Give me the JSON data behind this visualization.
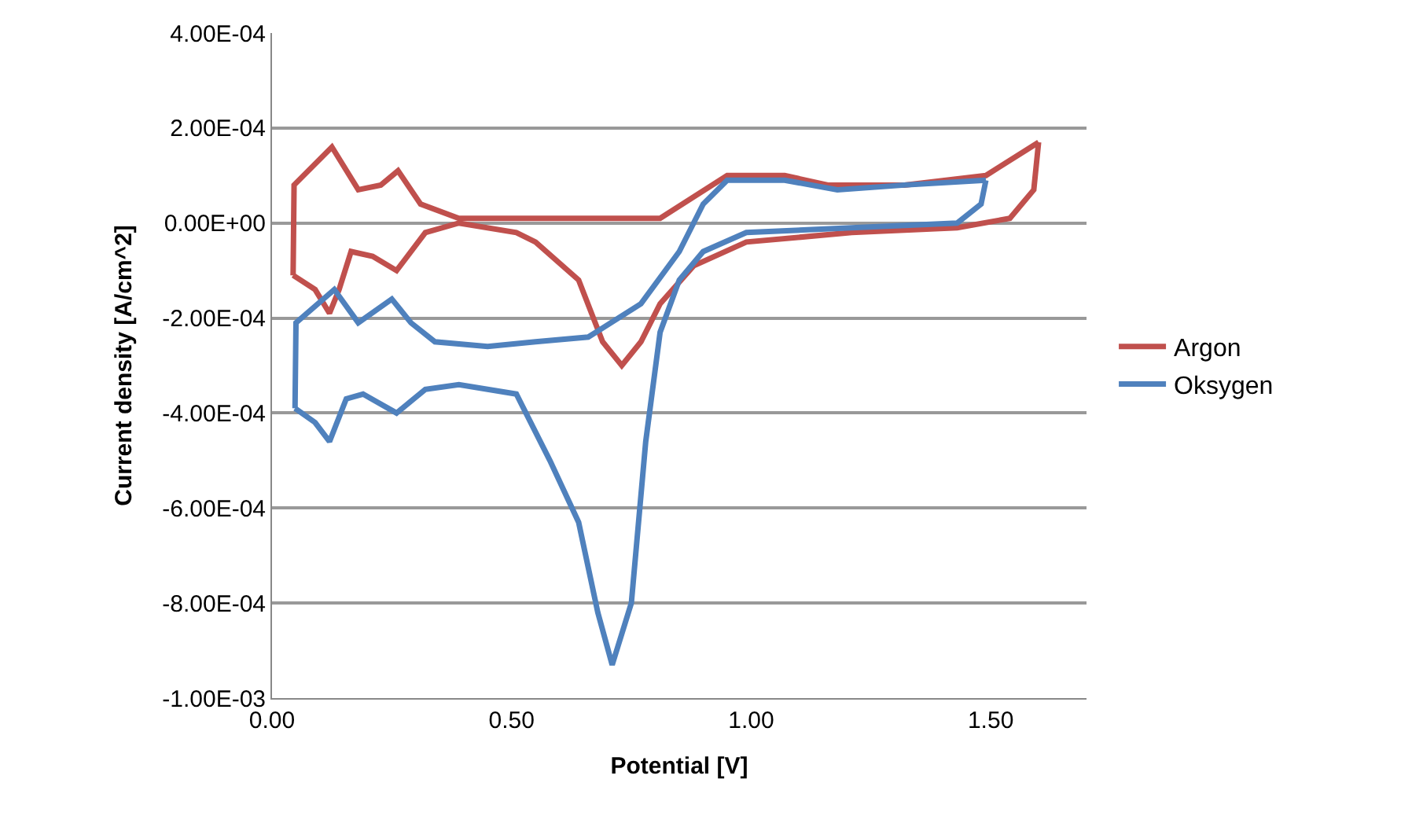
{
  "chart_data": {
    "type": "line",
    "xlabel": "Potential [V]",
    "ylabel": "Current density [A/cm^2]",
    "xlim": [
      0,
      1.7
    ],
    "xticks": [
      {
        "value": 0,
        "label": "0.00"
      },
      {
        "value": 0.5,
        "label": "0.50"
      },
      {
        "value": 1,
        "label": "1.00"
      },
      {
        "value": 1.5,
        "label": "1.50"
      }
    ],
    "ylim": [
      -0.001,
      0.0004
    ],
    "yticks": [
      {
        "value": -0.001,
        "label": "-1.00E-03"
      },
      {
        "value": -0.0008,
        "label": "-8.00E-04"
      },
      {
        "value": -0.0006,
        "label": "-6.00E-04"
      },
      {
        "value": -0.0004,
        "label": "-4.00E-04"
      },
      {
        "value": -0.0002,
        "label": "-2.00E-04"
      },
      {
        "value": 0,
        "label": "0.00E+00"
      },
      {
        "value": 0.0002,
        "label": "2.00E-04"
      },
      {
        "value": 0.0004,
        "label": "4.00E-04"
      }
    ],
    "grid": "y",
    "legend": "right",
    "marker": "none",
    "line_style": "solid",
    "series": [
      {
        "name": "Argon",
        "color": "#c0504d",
        "x": [
          0.044,
          0.046,
          0.125,
          0.18,
          0.227,
          0.263,
          0.31,
          0.39,
          0.55,
          0.7,
          0.81,
          0.95,
          1.07,
          1.16,
          1.32,
          1.49,
          1.6
        ],
        "values": [
          -0.00011,
          8e-05,
          0.00016,
          7e-05,
          8e-05,
          0.00011,
          4e-05,
          1e-05,
          1e-05,
          1e-05,
          1e-05,
          0.0001,
          0.0001,
          8e-05,
          8e-05,
          0.0001,
          0.00017
        ]
      },
      {
        "color": "#c0504d",
        "x": [
          1.6,
          1.59,
          1.54,
          1.43,
          1.21,
          0.99,
          0.88,
          0.81,
          0.77,
          0.73,
          0.69,
          0.64,
          0.55,
          0.51,
          0.39,
          0.32,
          0.26,
          0.21,
          0.165,
          0.14,
          0.12,
          0.09,
          0.044
        ],
        "values": [
          0.00017,
          7e-05,
          1e-05,
          -1e-05,
          -2e-05,
          -4e-05,
          -9e-05,
          -0.00017,
          -0.00025,
          -0.0003,
          -0.00025,
          -0.00012,
          -4e-05,
          -2e-05,
          0,
          -2e-05,
          -0.0001,
          -7e-05,
          -6e-05,
          -0.00014,
          -0.00019,
          -0.00014,
          -0.00011
        ]
      },
      {
        "name": "Oksygen",
        "color": "#4f81bd",
        "x": [
          0.048,
          0.05,
          0.13,
          0.18,
          0.25,
          0.29,
          0.34,
          0.45,
          0.55,
          0.66,
          0.77,
          0.85,
          0.9,
          0.95,
          1.07,
          1.18,
          1.32,
          1.49
        ],
        "values": [
          -0.00039,
          -0.00021,
          -0.00014,
          -0.00021,
          -0.00016,
          -0.00021,
          -0.00025,
          -0.00026,
          -0.00025,
          -0.00024,
          -0.00017,
          -6e-05,
          4e-05,
          9e-05,
          9e-05,
          7e-05,
          8e-05,
          9e-05
        ]
      },
      {
        "color": "#4f81bd",
        "x": [
          1.49,
          1.48,
          1.43,
          1.21,
          0.99,
          0.9,
          0.85,
          0.81,
          0.78,
          0.75,
          0.71,
          0.68,
          0.64,
          0.58,
          0.55,
          0.51,
          0.39,
          0.32,
          0.26,
          0.19,
          0.155,
          0.12,
          0.09,
          0.048
        ],
        "values": [
          9e-05,
          4e-05,
          0,
          -1e-05,
          -2e-05,
          -6e-05,
          -0.00012,
          -0.00023,
          -0.00046,
          -0.0008,
          -0.00093,
          -0.00082,
          -0.00063,
          -0.0005,
          -0.00044,
          -0.00036,
          -0.00034,
          -0.00035,
          -0.0004,
          -0.00036,
          -0.00037,
          -0.00046,
          -0.00042,
          -0.00039
        ]
      }
    ]
  }
}
